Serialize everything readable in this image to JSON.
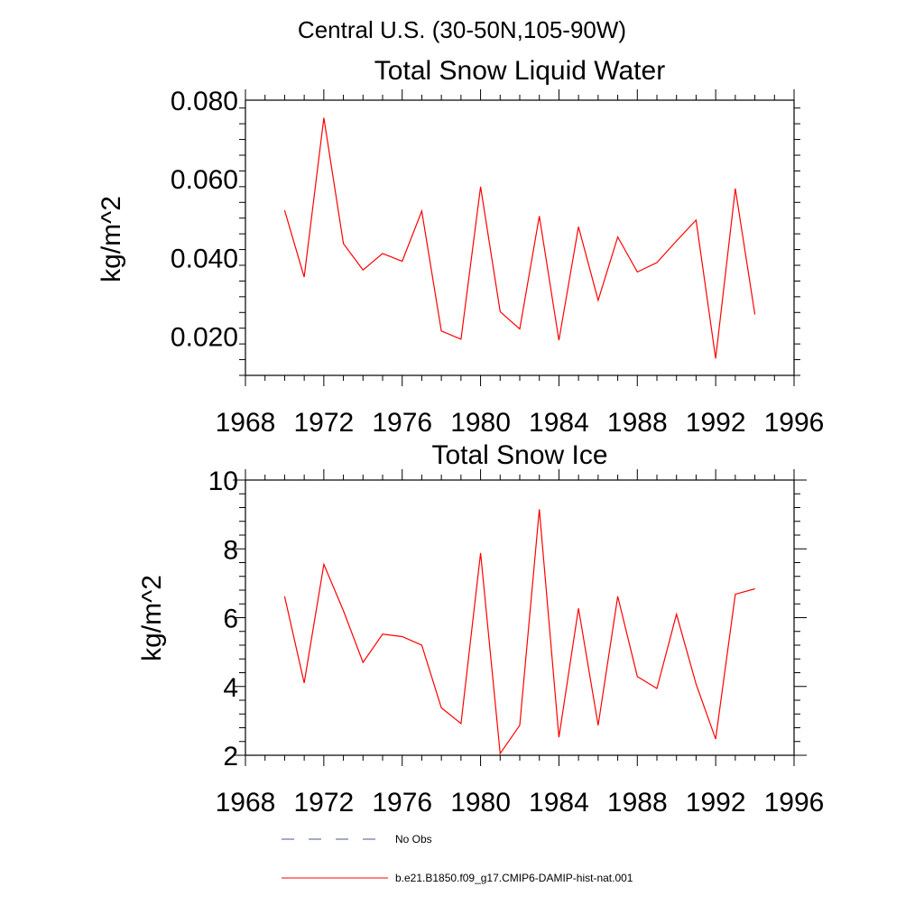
{
  "figure_title": "Central U.S. (30-50N,105-90W)",
  "legend": [
    {
      "label": "No Obs",
      "style": "dashed",
      "color": "#4a5a8a"
    },
    {
      "label": "b.e21.B1850.f09_g17.CMIP6-DAMIP-hist-nat.001",
      "style": "solid",
      "color": "#ff0000"
    }
  ],
  "chart_data": [
    {
      "type": "line",
      "title": "Total Snow Liquid Water",
      "xlabel": "",
      "ylabel": "kg/m^2",
      "xlim": [
        1968,
        1996
      ],
      "ylim": [
        0.01,
        0.08
      ],
      "xticks": [
        1968,
        1972,
        1976,
        1980,
        1984,
        1988,
        1992,
        1996
      ],
      "yticks": [
        0.02,
        0.04,
        0.06,
        0.08
      ],
      "yticklabels": [
        "0.020",
        "0.040",
        "0.060",
        "0.080"
      ],
      "grid": false,
      "series": [
        {
          "color": "#ff0000",
          "x": [
            1970,
            1971,
            1972,
            1973,
            1974,
            1975,
            1976,
            1977,
            1978,
            1979,
            1980,
            1981,
            1982,
            1983,
            1984,
            1985,
            1986,
            1987,
            1988,
            1989,
            1990,
            1991,
            1992,
            1993,
            1994
          ],
          "values": [
            0.052,
            0.035,
            0.0755,
            0.0435,
            0.0368,
            0.041,
            0.039,
            0.0518,
            0.0213,
            0.0192,
            0.058,
            0.0262,
            0.0218,
            0.0505,
            0.0189,
            0.0478,
            0.0291,
            0.0452,
            0.0363,
            0.0387,
            0.0442,
            0.0495,
            0.0143,
            0.0575,
            0.0255
          ]
        }
      ]
    },
    {
      "type": "line",
      "title": "Total Snow Ice",
      "xlabel": "",
      "ylabel": "kg/m^2",
      "xlim": [
        1968,
        1996
      ],
      "ylim": [
        2,
        10
      ],
      "xticks": [
        1968,
        1972,
        1976,
        1980,
        1984,
        1988,
        1992,
        1996
      ],
      "yticks": [
        2,
        4,
        6,
        8,
        10
      ],
      "yticklabels": [
        "2",
        "4",
        "6",
        "8",
        "10"
      ],
      "grid": false,
      "series": [
        {
          "color": "#ff0000",
          "x": [
            1970,
            1971,
            1972,
            1973,
            1974,
            1975,
            1976,
            1977,
            1978,
            1979,
            1980,
            1981,
            1982,
            1983,
            1984,
            1985,
            1986,
            1987,
            1988,
            1989,
            1990,
            1991,
            1992,
            1993,
            1994
          ],
          "values": [
            6.62,
            4.1,
            7.55,
            6.2,
            4.7,
            5.52,
            5.45,
            5.2,
            3.38,
            2.92,
            7.88,
            2.05,
            2.87,
            9.15,
            2.52,
            6.27,
            2.87,
            6.62,
            4.29,
            3.94,
            6.1,
            4.07,
            2.47,
            6.68,
            6.84
          ]
        }
      ]
    }
  ]
}
